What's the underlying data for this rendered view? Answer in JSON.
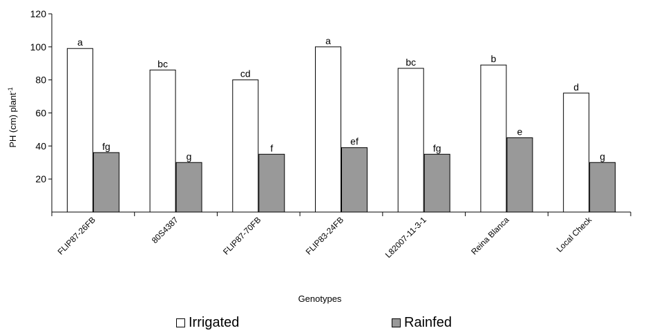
{
  "chart_data": {
    "type": "bar",
    "title": "",
    "xlabel": "Genotypes",
    "ylabel": "PH (cm) plant",
    "ylabel_superscript": "-1",
    "ylim": [
      0,
      120
    ],
    "yticks": [
      20,
      40,
      60,
      80,
      100,
      120
    ],
    "categories": [
      "FLIP87-26FB",
      "80S4387",
      "FLIP87-70FB",
      "FLIP83-24FB",
      "L82007-11-3-1",
      "Reina Blanca",
      "Local Check"
    ],
    "series": [
      {
        "name": "Irrigated",
        "color": "#ffffff",
        "values": [
          99,
          86,
          80,
          100,
          87,
          89,
          72
        ],
        "letters": [
          "a",
          "bc",
          "cd",
          "a",
          "bc",
          "b",
          "d"
        ]
      },
      {
        "name": "Rainfed",
        "color": "#999999",
        "values": [
          36,
          30,
          35,
          39,
          35,
          45,
          30
        ],
        "letters": [
          "fg",
          "g",
          "f",
          "ef",
          "fg",
          "e",
          "g"
        ]
      }
    ],
    "grid": false,
    "legend_position": "bottom"
  }
}
